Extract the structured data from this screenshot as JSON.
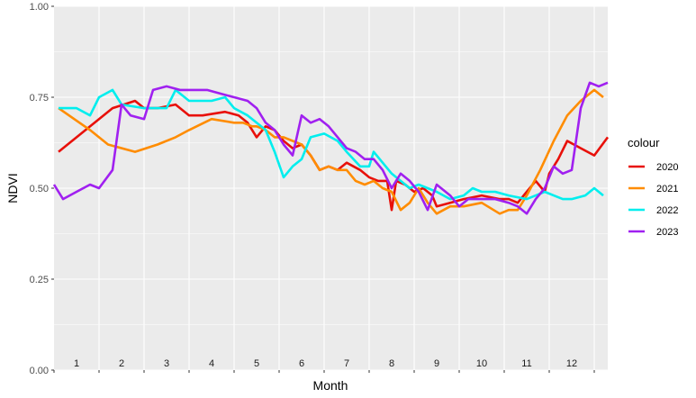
{
  "chart_data": {
    "type": "line",
    "xlabel": "Month",
    "ylabel": "NDVI",
    "ylim": [
      0,
      1
    ],
    "xlim": [
      0.5,
      12.8
    ],
    "y_ticks": [
      "0.00",
      "0.25",
      "0.50",
      "0.75",
      "1.00"
    ],
    "month_labels": [
      "1",
      "2",
      "3",
      "4",
      "5",
      "6",
      "7",
      "8",
      "9",
      "10",
      "11",
      "12"
    ],
    "grid": true,
    "legend": {
      "title": "colour",
      "position": "right"
    },
    "series": [
      {
        "name": "2020",
        "color": "#e8100a",
        "x": [
          0.6,
          1.2,
          1.8,
          2.3,
          2.5,
          2.8,
          3.2,
          3.5,
          3.8,
          4.3,
          4.6,
          4.8,
          5.0,
          5.2,
          5.4,
          5.6,
          5.8,
          6.0,
          6.2,
          6.4,
          6.6,
          6.8,
          7.0,
          7.3,
          7.5,
          7.7,
          7.9,
          8.0,
          8.1,
          8.3,
          8.5,
          8.7,
          8.9,
          9.0,
          9.3,
          9.6,
          10.0,
          10.4,
          10.6,
          10.8,
          11.0,
          11.2,
          11.4,
          11.5,
          11.7,
          11.9,
          12.2,
          12.5,
          12.8
        ],
        "y": [
          0.6,
          0.66,
          0.72,
          0.74,
          0.72,
          0.72,
          0.73,
          0.7,
          0.7,
          0.71,
          0.7,
          0.68,
          0.64,
          0.67,
          0.66,
          0.63,
          0.61,
          0.62,
          0.59,
          0.55,
          0.56,
          0.55,
          0.57,
          0.55,
          0.53,
          0.52,
          0.52,
          0.44,
          0.52,
          0.51,
          0.49,
          0.5,
          0.48,
          0.45,
          0.46,
          0.47,
          0.48,
          0.47,
          0.47,
          0.46,
          0.49,
          0.52,
          0.49,
          0.54,
          0.58,
          0.63,
          0.61,
          0.59,
          0.64
        ]
      },
      {
        "name": "2021",
        "color": "#ff8c00",
        "x": [
          0.6,
          1.3,
          1.7,
          2.3,
          2.8,
          3.2,
          3.5,
          4.0,
          4.5,
          4.7,
          4.9,
          5.0,
          5.2,
          5.4,
          5.6,
          5.8,
          6.0,
          6.2,
          6.4,
          6.6,
          6.8,
          7.0,
          7.2,
          7.4,
          7.6,
          7.8,
          8.0,
          8.2,
          8.4,
          8.6,
          8.8,
          9.0,
          9.3,
          9.6,
          10.0,
          10.4,
          10.6,
          10.8,
          11.0,
          11.3,
          11.6,
          11.9,
          12.2,
          12.5,
          12.7
        ],
        "y": [
          0.72,
          0.66,
          0.62,
          0.6,
          0.62,
          0.64,
          0.66,
          0.69,
          0.68,
          0.68,
          0.67,
          0.67,
          0.66,
          0.64,
          0.64,
          0.63,
          0.62,
          0.59,
          0.55,
          0.56,
          0.55,
          0.55,
          0.52,
          0.51,
          0.52,
          0.5,
          0.49,
          0.44,
          0.46,
          0.5,
          0.46,
          0.43,
          0.45,
          0.45,
          0.46,
          0.43,
          0.44,
          0.44,
          0.48,
          0.55,
          0.63,
          0.7,
          0.74,
          0.77,
          0.75
        ]
      },
      {
        "name": "2022",
        "color": "#00eeee",
        "x": [
          0.6,
          0.8,
          1.0,
          1.3,
          1.5,
          1.8,
          2.0,
          2.5,
          3.0,
          3.2,
          3.5,
          4.0,
          4.3,
          4.5,
          4.8,
          5.0,
          5.2,
          5.4,
          5.6,
          5.8,
          6.0,
          6.2,
          6.5,
          6.8,
          7.0,
          7.3,
          7.5,
          7.6,
          7.8,
          8.0,
          8.2,
          8.4,
          8.6,
          8.8,
          9.0,
          9.3,
          9.6,
          9.8,
          10.0,
          10.3,
          10.6,
          11.0,
          11.2,
          11.4,
          11.6,
          11.8,
          12.0,
          12.3,
          12.5,
          12.7
        ],
        "y": [
          0.72,
          0.72,
          0.72,
          0.7,
          0.75,
          0.77,
          0.73,
          0.72,
          0.72,
          0.77,
          0.74,
          0.74,
          0.75,
          0.72,
          0.7,
          0.68,
          0.66,
          0.6,
          0.53,
          0.56,
          0.58,
          0.64,
          0.65,
          0.63,
          0.6,
          0.56,
          0.56,
          0.6,
          0.57,
          0.54,
          0.52,
          0.5,
          0.51,
          0.5,
          0.49,
          0.47,
          0.48,
          0.5,
          0.49,
          0.49,
          0.48,
          0.47,
          0.48,
          0.49,
          0.48,
          0.47,
          0.47,
          0.48,
          0.5,
          0.48
        ]
      },
      {
        "name": "2023",
        "color": "#a020f0",
        "x": [
          0.5,
          0.7,
          1.0,
          1.3,
          1.5,
          1.8,
          2.0,
          2.2,
          2.5,
          2.7,
          3.0,
          3.3,
          3.6,
          3.9,
          4.2,
          4.5,
          4.8,
          5.0,
          5.2,
          5.4,
          5.6,
          5.8,
          6.0,
          6.2,
          6.4,
          6.6,
          6.8,
          7.0,
          7.2,
          7.4,
          7.6,
          7.8,
          8.0,
          8.2,
          8.4,
          8.6,
          8.8,
          9.0,
          9.3,
          9.5,
          9.7,
          10.0,
          10.3,
          10.6,
          10.8,
          11.0,
          11.2,
          11.4,
          11.6,
          11.8,
          12.0,
          12.2,
          12.4,
          12.6,
          12.8
        ],
        "y": [
          0.51,
          0.47,
          0.49,
          0.51,
          0.5,
          0.55,
          0.73,
          0.7,
          0.69,
          0.77,
          0.78,
          0.77,
          0.77,
          0.77,
          0.76,
          0.75,
          0.74,
          0.72,
          0.68,
          0.66,
          0.62,
          0.59,
          0.7,
          0.68,
          0.69,
          0.67,
          0.64,
          0.61,
          0.6,
          0.58,
          0.58,
          0.55,
          0.5,
          0.54,
          0.52,
          0.49,
          0.44,
          0.51,
          0.48,
          0.45,
          0.47,
          0.47,
          0.47,
          0.46,
          0.45,
          0.43,
          0.47,
          0.5,
          0.56,
          0.54,
          0.55,
          0.72,
          0.79,
          0.78,
          0.79
        ]
      }
    ]
  }
}
